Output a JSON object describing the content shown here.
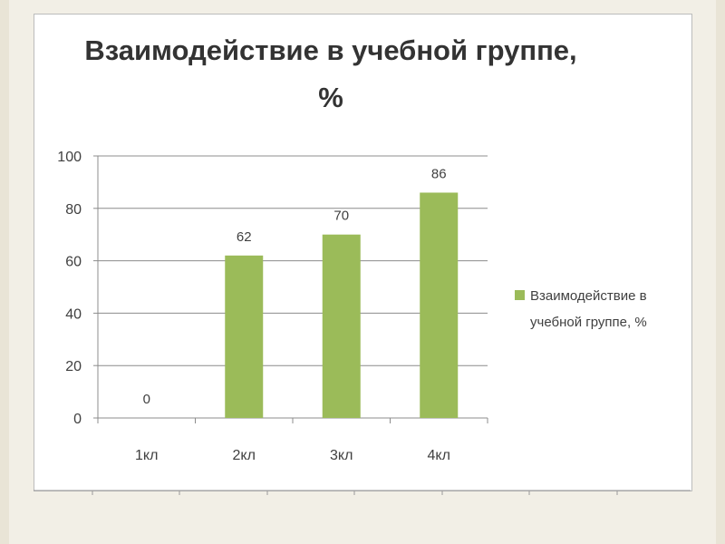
{
  "chart_data": {
    "type": "bar",
    "title": "Взаимодействие в учебной группе, %",
    "categories": [
      "1кл",
      "2кл",
      "3кл",
      "4кл"
    ],
    "series": [
      {
        "name": "Взаимодействие в учебной группе, %",
        "values": [
          0,
          62,
          70,
          86
        ],
        "data_labels": [
          "0",
          "62",
          "70",
          "86"
        ]
      }
    ],
    "xlabel": "",
    "ylabel": "",
    "ylim": [
      0,
      100
    ],
    "yticks": [
      0,
      20,
      40,
      60,
      80,
      100
    ],
    "ytick_labels": [
      "0",
      "20",
      "40",
      "60",
      "80",
      "100"
    ],
    "grid": true,
    "legend_position": "right",
    "colors": {
      "bar": "#9bbb59",
      "grid": "#8c8c8c",
      "axis": "#8c8c8c",
      "text": "#404040"
    },
    "legend_lines": [
      "Взаимодействие в",
      "учебной группе, %"
    ]
  }
}
